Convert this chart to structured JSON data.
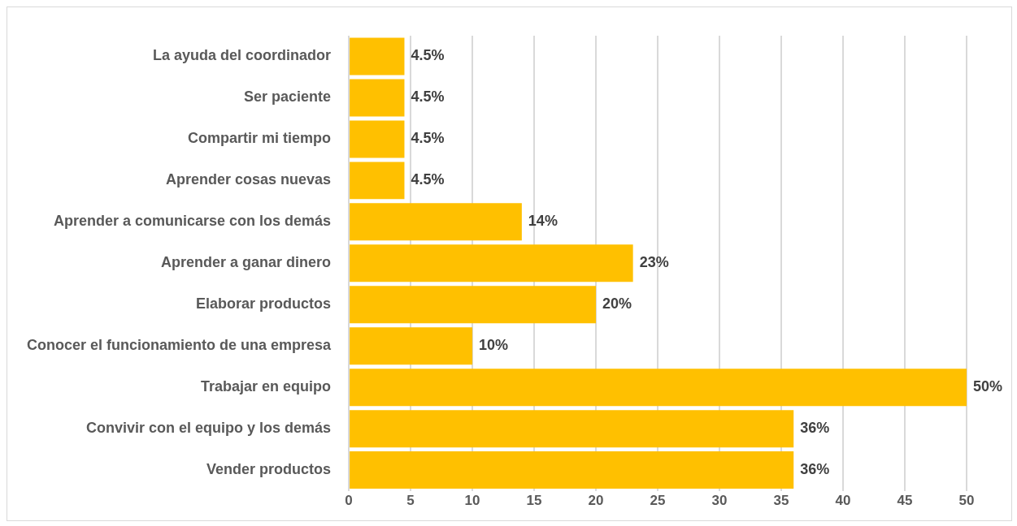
{
  "chart_data": {
    "type": "bar",
    "orientation": "horizontal",
    "categories": [
      "La ayuda del coordinador",
      "Ser paciente",
      "Compartir mi tiempo",
      "Aprender cosas nuevas",
      "Aprender a comunicarse con los demás",
      "Aprender a ganar dinero",
      "Elaborar productos",
      "Conocer el funcionamiento de una empresa",
      "Trabajar en equipo",
      "Convivir con el equipo y los demás",
      "Vender productos"
    ],
    "values": [
      4.5,
      4.5,
      4.5,
      4.5,
      14,
      23,
      20,
      10,
      50,
      36,
      36
    ],
    "value_labels": [
      "4.5%",
      "4.5%",
      "4.5%",
      "4.5%",
      "14%",
      "23%",
      "20%",
      "10%",
      "50%",
      "36%",
      "36%"
    ],
    "color": "#ffc000",
    "xlim": [
      0,
      50
    ],
    "xticks": [
      0,
      5,
      10,
      15,
      20,
      25,
      30,
      35,
      40,
      45,
      50
    ],
    "grid": "x",
    "legend": false
  }
}
